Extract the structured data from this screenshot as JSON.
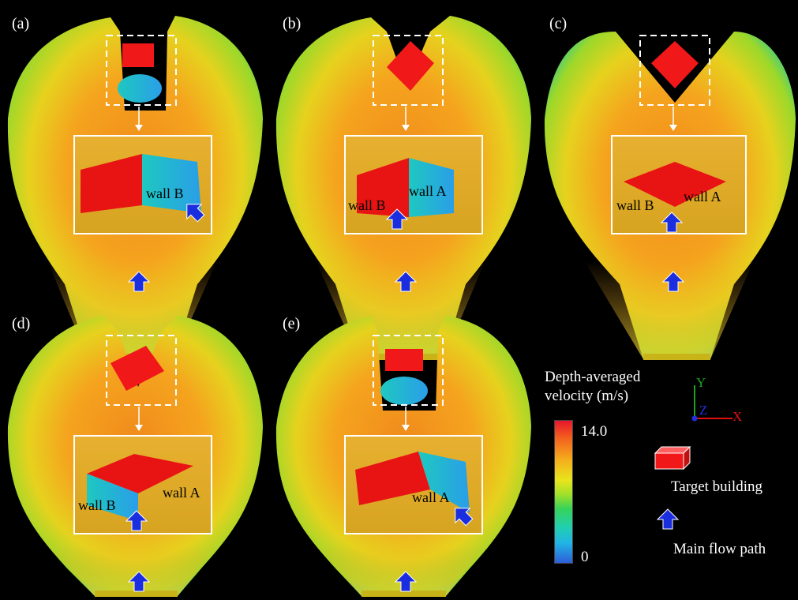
{
  "panels": [
    {
      "label": "(a)",
      "walls": [
        "wall B"
      ]
    },
    {
      "label": "(b)",
      "walls": [
        "wall B",
        "wall A"
      ]
    },
    {
      "label": "(c)",
      "walls": [
        "wall B",
        "wall A"
      ]
    },
    {
      "label": "(d)",
      "walls": [
        "wall B",
        "wall A"
      ]
    },
    {
      "label": "(e)",
      "walls": [
        "wall A"
      ]
    }
  ],
  "legend": {
    "title_line1": "Depth-averaged",
    "title_line2": "velocity (m/s)",
    "max": "14.0",
    "min": "0"
  },
  "axes": {
    "y": "Y",
    "z": "Z",
    "x": "X"
  },
  "key": {
    "building": "Target building",
    "flow": "Main flow path"
  },
  "colors": {
    "building": "#f01818",
    "flow_arrow": "#1a2ee0",
    "axis_x": "#e01010",
    "axis_y": "#20a020",
    "axis_z": "#2030e0"
  }
}
